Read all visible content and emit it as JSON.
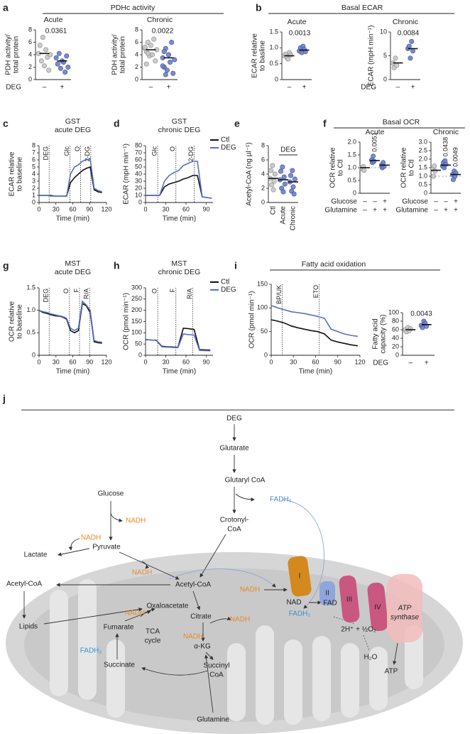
{
  "figure": {
    "panel_labels": [
      "a",
      "b",
      "c",
      "d",
      "e",
      "f",
      "g",
      "h",
      "i",
      "j"
    ],
    "group_titles": [
      "PDHc activity",
      "Basal ECAR",
      "Basal OCR",
      "Fatty acid oxidation"
    ]
  },
  "chart_data": [
    {
      "type": "dot",
      "title": "Acute",
      "ylabel": [
        "PDH activity/",
        "total protein"
      ],
      "categories": [
        "–",
        "+"
      ],
      "row_label": "DEG",
      "values": [
        [
          4.2,
          5.5,
          3.0,
          6.8,
          2.2,
          4.8,
          3.6,
          1.5,
          4.0
        ],
        [
          3.5,
          2.5,
          4.2,
          1.8,
          3.0,
          2.8,
          1.2,
          3.8,
          2.0
        ]
      ],
      "means": [
        4.2,
        3.0
      ],
      "colors": [
        "#c8c8c8",
        "#6d7fc6"
      ],
      "ylim": [
        0,
        8
      ],
      "yticks": [
        0,
        2,
        4,
        6,
        8
      ],
      "pvalue_labels": [
        null,
        "0.0361"
      ]
    },
    {
      "type": "dot",
      "title": "Chronic",
      "ylabel": [
        "PDH activity/",
        "total protein"
      ],
      "categories": [
        "–",
        "+"
      ],
      "values": [
        [
          5.0,
          4.5,
          6.0,
          3.8,
          5.5,
          4.0,
          6.5,
          3.0,
          4.8,
          5.2,
          2.5,
          4.2
        ],
        [
          3.5,
          2.0,
          5.0,
          1.5,
          4.0,
          2.8,
          6.0,
          1.0,
          3.2,
          2.2,
          4.5,
          0.8
        ]
      ],
      "means": [
        4.8,
        3.5
      ],
      "colors": [
        "#c8c8c8",
        "#6d7fc6"
      ],
      "ylim": [
        0,
        8
      ],
      "yticks": [
        0,
        2,
        4,
        6,
        8
      ],
      "pvalue_labels": [
        null,
        "0.0022"
      ]
    },
    {
      "type": "dot",
      "title": "Acute",
      "ylabel": [
        "ECAR relative",
        "to basline"
      ],
      "categories": [
        "–",
        "+"
      ],
      "values": [
        [
          0.75,
          0.8,
          0.7,
          0.65,
          0.85,
          0.78
        ],
        [
          0.9,
          1.0,
          0.85,
          1.05,
          0.95,
          0.88
        ]
      ],
      "means": [
        0.75,
        0.93
      ],
      "colors": [
        "#c8c8c8",
        "#6d7fc6"
      ],
      "ylim": [
        0,
        1.5
      ],
      "yticks": [
        0,
        0.5,
        {
          "value": 1,
          "label": "1.0"
        },
        1.5
      ],
      "pvalue_labels": [
        null,
        "0.0013"
      ]
    },
    {
      "type": "dot",
      "title": "Chronic",
      "ylabel": [
        "ECAR (mpH min⁻¹)"
      ],
      "categories": [
        "–",
        "+"
      ],
      "row_label": "DEG",
      "values": [
        [
          3.5,
          2.5,
          4.5,
          3.0
        ],
        [
          6.5,
          7.0,
          4.5,
          8.0,
          6.0
        ]
      ],
      "means": [
        3.5,
        6.5
      ],
      "colors": [
        "#c8c8c8",
        "#6d7fc6"
      ],
      "ylim": [
        0,
        10
      ],
      "yticks": [
        0,
        5,
        10
      ],
      "pvalue_labels": [
        null,
        "0.0084"
      ]
    },
    {
      "type": "line",
      "title": [
        "GST",
        "acute DEG"
      ],
      "ylabel": [
        "ECAR relative",
        "to baseline"
      ],
      "xlabel": "Time (min)",
      "x": [
        0,
        7,
        14,
        21,
        28,
        35,
        42,
        49,
        56,
        63,
        70,
        77,
        84,
        91,
        98,
        105,
        112
      ],
      "series": [
        {
          "name": "Ctl",
          "color": "#111111",
          "values": [
            1,
            1,
            1,
            1,
            0.9,
            0.9,
            0.9,
            0.9,
            2.8,
            3.5,
            4.0,
            4.5,
            4.8,
            5.0,
            1.8,
            1.5,
            1.4
          ]
        },
        {
          "name": "DEG",
          "color": "#5b6fc0",
          "values": [
            1,
            1,
            1,
            0.9,
            0.9,
            0.9,
            0.9,
            0.9,
            4.0,
            5.0,
            5.3,
            5.8,
            6.0,
            6.2,
            2.0,
            1.7,
            1.5
          ]
        }
      ],
      "events": [
        {
          "label": "DEG",
          "x": 18
        },
        {
          "label": "Glc",
          "x": 55
        },
        {
          "label": "O",
          "x": 74
        },
        {
          "label": "2-DG",
          "x": 92
        }
      ],
      "xlim": [
        0,
        120
      ],
      "xticks": [
        0,
        30,
        60,
        90,
        120
      ],
      "ylim": [
        0,
        8
      ],
      "yticks": [
        0,
        1,
        2,
        3,
        4,
        5,
        6,
        7,
        8
      ],
      "legend": false
    },
    {
      "type": "line",
      "title": [
        "GST",
        "chronic DEG"
      ],
      "ylabel": [
        "ECAR (mpH min⁻¹)"
      ],
      "xlabel": "Time (min)",
      "x": [
        0,
        7,
        14,
        21,
        28,
        35,
        42,
        49,
        56,
        63,
        70,
        77,
        84,
        91,
        98
      ],
      "series": [
        {
          "name": "Ctl",
          "color": "#111111",
          "values": [
            10,
            10,
            10,
            10,
            22,
            26,
            28,
            30,
            33,
            35,
            38,
            38,
            8,
            7,
            6
          ]
        },
        {
          "name": "DEG",
          "color": "#5b6fc0",
          "values": [
            10,
            10,
            10,
            10,
            30,
            38,
            42,
            45,
            52,
            55,
            58,
            58,
            8,
            7,
            6
          ]
        }
      ],
      "events": [
        {
          "label": "Glc",
          "x": 18
        },
        {
          "label": "O",
          "x": 45
        },
        {
          "label": "2-DG",
          "x": 72
        }
      ],
      "xlim": [
        0,
        100
      ],
      "xticks": [
        0,
        30,
        60,
        90
      ],
      "ylim": [
        0,
        80
      ],
      "yticks": [
        0,
        10,
        20,
        30,
        40,
        50,
        60,
        70,
        80
      ],
      "legend": true
    },
    {
      "type": "dot",
      "ylabel": [
        "Acetyl-CoA (ng µl⁻¹)"
      ],
      "categories": [
        "Ctl",
        "Acute",
        "Chronic"
      ],
      "rotate_categories": true,
      "group_label": "DEG",
      "values": [
        [
          3.4,
          4.5,
          2.5,
          5.2,
          1.8,
          3.0,
          4.0
        ],
        [
          3.2,
          4.4,
          2.0,
          5.0,
          1.5,
          3.6,
          2.6
        ],
        [
          2.9,
          3.8,
          1.6,
          4.5,
          2.2,
          1.2,
          3.3
        ]
      ],
      "means": [
        3.4,
        3.2,
        2.9
      ],
      "colors": [
        "#c8c8c8",
        "#6d7fc6",
        "#6d7fc6"
      ],
      "ylim": [
        0,
        8
      ],
      "yticks": [
        0,
        2,
        4,
        6,
        8
      ]
    },
    {
      "type": "dot",
      "title": "Acute",
      "ylabel": [
        "OCR relative",
        "to Ctl"
      ],
      "rows": [
        {
          "name": "Glucose",
          "values": [
            "–",
            "–",
            "+"
          ]
        },
        {
          "name": "Glutamine",
          "values": [
            "–",
            "+",
            "+"
          ]
        }
      ],
      "values": [
        [
          1.0,
          0.95,
          1.05,
          0.9
        ],
        [
          1.3,
          1.2,
          1.45,
          1.25
        ],
        [
          1.1,
          1.0,
          1.2,
          1.05
        ]
      ],
      "means": [
        1.0,
        1.28,
        1.1
      ],
      "colors": [
        "#c8c8c8",
        "#6d7fc6",
        "#6d7fc6"
      ],
      "ylim": [
        0,
        2
      ],
      "yticks": [
        0,
        0.5,
        {
          "value": 1,
          "label": "1.0"
        },
        1.5,
        {
          "value": 2,
          "label": "2.0"
        }
      ],
      "pvalue_labels": [
        null,
        "0.0051",
        null
      ],
      "pvalue_orientation": "vertical",
      "reference_line": 1
    },
    {
      "type": "dot",
      "title": "Chronic",
      "ylabel": [
        "OCR relative",
        "to Ctl"
      ],
      "rows": [
        {
          "name": "Glucose",
          "values": [
            "–",
            "–",
            "+"
          ]
        },
        {
          "name": "Glutamine",
          "values": [
            "–",
            "+",
            "+"
          ]
        }
      ],
      "values": [
        [
          1.4,
          1.0,
          1.6,
          1.3
        ],
        [
          1.6,
          1.8,
          1.5,
          1.9,
          1.7
        ],
        [
          1.1,
          0.8,
          1.3,
          1.0,
          1.2
        ]
      ],
      "means": [
        1.35,
        1.65,
        1.1
      ],
      "colors": [
        "#c8c8c8",
        "#6d7fc6",
        "#6d7fc6"
      ],
      "ylim": [
        0,
        3
      ],
      "yticks": [
        0,
        0.5,
        {
          "value": 1,
          "label": "1.0"
        },
        1.5,
        {
          "value": 2,
          "label": "2.0"
        },
        2.5,
        {
          "value": 3,
          "label": "3.0"
        }
      ],
      "pvalue_labels": [
        null,
        "0.0438",
        "0.0049"
      ],
      "pvalue_orientation": "vertical",
      "reference_line": 1
    },
    {
      "type": "line",
      "title": [
        "MST",
        "acute DEG"
      ],
      "ylabel": [
        "OCR relative",
        "to baseline"
      ],
      "xlabel": "Time (min)",
      "x": [
        0,
        7,
        14,
        21,
        28,
        35,
        42,
        49,
        56,
        63,
        70,
        77,
        84,
        91,
        98,
        105,
        112
      ],
      "series": [
        {
          "name": "Ctl",
          "color": "#111111",
          "values": [
            1,
            0.95,
            0.93,
            0.9,
            0.88,
            0.87,
            0.85,
            0.8,
            0.55,
            0.5,
            0.55,
            1.15,
            1.1,
            0.95,
            0.3,
            0.28,
            0.27
          ]
        },
        {
          "name": "DEG",
          "color": "#5b6fc0",
          "values": [
            1,
            0.97,
            0.95,
            0.92,
            0.9,
            0.88,
            0.86,
            0.82,
            0.6,
            0.55,
            0.6,
            1.2,
            1.12,
            1.0,
            0.33,
            0.3,
            0.29
          ]
        }
      ],
      "events": [
        {
          "label": "DEG",
          "x": 18
        },
        {
          "label": "O",
          "x": 54
        },
        {
          "label": "F",
          "x": 72
        },
        {
          "label": "R/A",
          "x": 90
        }
      ],
      "xlim": [
        0,
        120
      ],
      "xticks": [
        0,
        30,
        60,
        90,
        120
      ],
      "ylim": [
        0,
        1.5
      ],
      "yticks": [
        0,
        0.5,
        {
          "value": 1,
          "label": "1.0"
        },
        1.5
      ],
      "legend": false
    },
    {
      "type": "line",
      "title": [
        "MST",
        "chronic DEG"
      ],
      "ylabel": [
        "OCR (pmol min⁻¹)"
      ],
      "xlabel": "Time (min)",
      "x": [
        0,
        8,
        16,
        24,
        32,
        40,
        48,
        56,
        64,
        72,
        80,
        88,
        96
      ],
      "series": [
        {
          "name": "Ctl",
          "color": "#111111",
          "values": [
            70,
            68,
            67,
            40,
            38,
            37,
            35,
            120,
            118,
            115,
            25,
            24,
            23
          ]
        },
        {
          "name": "DEG",
          "color": "#5b6fc0",
          "values": [
            70,
            68,
            66,
            38,
            36,
            35,
            34,
            95,
            92,
            90,
            22,
            21,
            20
          ]
        }
      ],
      "events": [
        {
          "label": "O",
          "x": 18
        },
        {
          "label": "F",
          "x": 45
        },
        {
          "label": "R/A",
          "x": 70
        }
      ],
      "xlim": [
        0,
        100
      ],
      "xticks": [
        0,
        30,
        60,
        90
      ],
      "ylim": [
        0,
        300
      ],
      "yticks": [
        0,
        50,
        100,
        150,
        200,
        250,
        300
      ],
      "legend": true
    },
    {
      "type": "line",
      "ylabel": [
        "OCR (pmol min⁻¹)"
      ],
      "xlabel": "Time (min)",
      "x": [
        0,
        9,
        18,
        27,
        36,
        45,
        54,
        63,
        72,
        81,
        90,
        99,
        108,
        117
      ],
      "series": [
        {
          "name": "Ctl",
          "color": "#111111",
          "values": [
            75,
            72,
            68,
            62,
            58,
            55,
            52,
            50,
            45,
            32,
            28,
            25,
            22,
            20
          ]
        },
        {
          "name": "DEG",
          "color": "#5b6fc0",
          "values": [
            105,
            100,
            96,
            92,
            90,
            88,
            85,
            82,
            78,
            55,
            50,
            45,
            42,
            40
          ]
        }
      ],
      "events": [
        {
          "label": "BP/UK",
          "x": 15
        },
        {
          "label": "ETO",
          "x": 65
        }
      ],
      "xlim": [
        0,
        120
      ],
      "xticks": [
        0,
        30,
        60,
        90,
        120
      ],
      "ylim": [
        0,
        150
      ],
      "yticks": [
        0,
        50,
        100,
        150
      ],
      "legend": false
    },
    {
      "type": "dot",
      "ylabel": [
        "Fatty acid",
        "capacity (%)"
      ],
      "categories": [
        "–",
        "+"
      ],
      "row_label": "DEG",
      "values": [
        [
          60,
          55,
          65,
          58,
          62
        ],
        [
          70,
          65,
          80,
          75,
          68
        ]
      ],
      "means": [
        60,
        72
      ],
      "colors": [
        "#c8c8c8",
        "#6d7fc6"
      ],
      "ylim": [
        0,
        100
      ],
      "yticks": [
        0,
        20,
        40,
        60,
        80,
        100
      ],
      "pvalue_labels": [
        null,
        "0.0043"
      ]
    }
  ],
  "diagram": {
    "labels": [
      "DEG",
      "Glutarate",
      "Glutaryl CoA",
      "FADH₂",
      "Crotonyl-",
      "CoA",
      "Glucose",
      "NADH",
      "NADH",
      "Lactate",
      "Pyruvate",
      "NADH",
      "Acetyl-CoA",
      "NADH",
      "Acetyl-CoA",
      "Lipids",
      "Oxaloacetate",
      "Citrate",
      "NADH",
      "NADH",
      "TCA",
      "cycle",
      "Fumarate",
      "α-KG",
      "NADH",
      "FADH₂",
      "Succinate",
      "Succinyl",
      "CoA",
      "Glutamine",
      "NAD",
      "FADH₂",
      "FAD",
      "2H⁺ + ½O₂",
      "H₂O",
      "ATP",
      "ATP",
      "synthase",
      "I",
      "II",
      "III",
      "IV"
    ]
  }
}
